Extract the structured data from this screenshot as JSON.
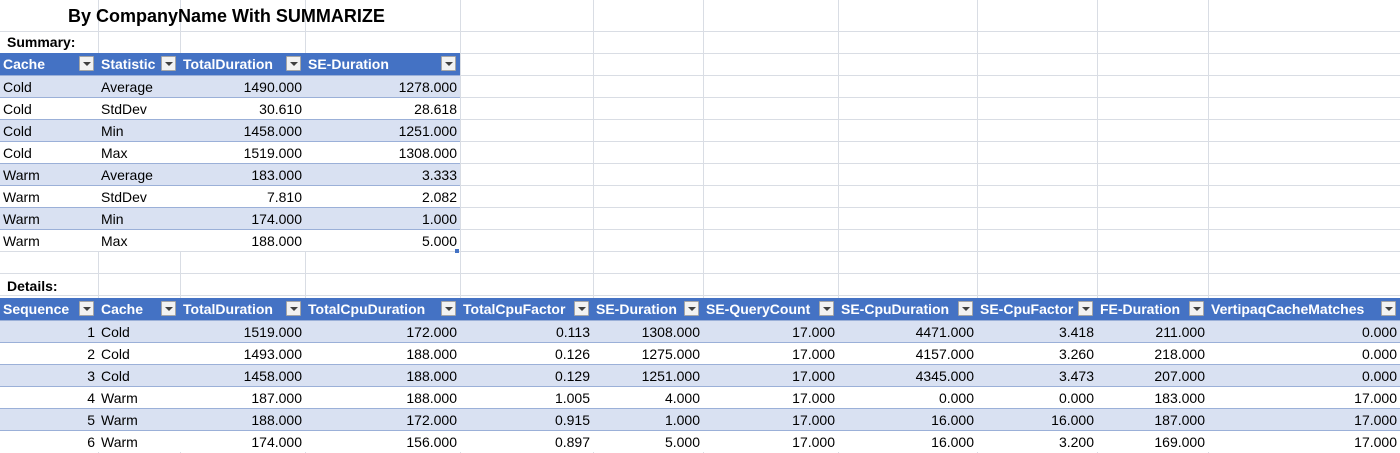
{
  "title": "By CompanyName With SUMMARIZE",
  "summary": {
    "label": "Summary:",
    "headers": [
      "Cache",
      "Statistic",
      "TotalDuration",
      "SE-Duration"
    ],
    "rows": [
      [
        "Cold",
        "Average",
        "1490.000",
        "1278.000"
      ],
      [
        "Cold",
        "StdDev",
        "30.610",
        "28.618"
      ],
      [
        "Cold",
        "Min",
        "1458.000",
        "1251.000"
      ],
      [
        "Cold",
        "Max",
        "1519.000",
        "1308.000"
      ],
      [
        "Warm",
        "Average",
        "183.000",
        "3.333"
      ],
      [
        "Warm",
        "StdDev",
        "7.810",
        "2.082"
      ],
      [
        "Warm",
        "Min",
        "174.000",
        "1.000"
      ],
      [
        "Warm",
        "Max",
        "188.000",
        "5.000"
      ]
    ]
  },
  "details": {
    "label": "Details:",
    "headers": [
      "Sequence",
      "Cache",
      "TotalDuration",
      "TotalCpuDuration",
      "TotalCpuFactor",
      "SE-Duration",
      "SE-QueryCount",
      "SE-CpuDuration",
      "SE-CpuFactor",
      "FE-Duration",
      "VertipaqCacheMatches"
    ],
    "rows": [
      [
        "1",
        "Cold",
        "1519.000",
        "172.000",
        "0.113",
        "1308.000",
        "17.000",
        "4471.000",
        "3.418",
        "211.000",
        "0.000"
      ],
      [
        "2",
        "Cold",
        "1493.000",
        "188.000",
        "0.126",
        "1275.000",
        "17.000",
        "4157.000",
        "3.260",
        "218.000",
        "0.000"
      ],
      [
        "3",
        "Cold",
        "1458.000",
        "188.000",
        "0.129",
        "1251.000",
        "17.000",
        "4345.000",
        "3.473",
        "207.000",
        "0.000"
      ],
      [
        "4",
        "Warm",
        "187.000",
        "188.000",
        "1.005",
        "4.000",
        "17.000",
        "0.000",
        "0.000",
        "183.000",
        "17.000"
      ],
      [
        "5",
        "Warm",
        "188.000",
        "172.000",
        "0.915",
        "1.000",
        "17.000",
        "16.000",
        "16.000",
        "187.000",
        "17.000"
      ],
      [
        "6",
        "Warm",
        "174.000",
        "156.000",
        "0.897",
        "5.000",
        "17.000",
        "16.000",
        "3.200",
        "169.000",
        "17.000"
      ]
    ]
  },
  "colors": {
    "header_bg": "#4472c4",
    "header_text": "#ffffff",
    "band_bg": "#d9e1f2",
    "gridline": "#d9dde4"
  },
  "icons": {
    "filter": "filter-dropdown-icon"
  }
}
